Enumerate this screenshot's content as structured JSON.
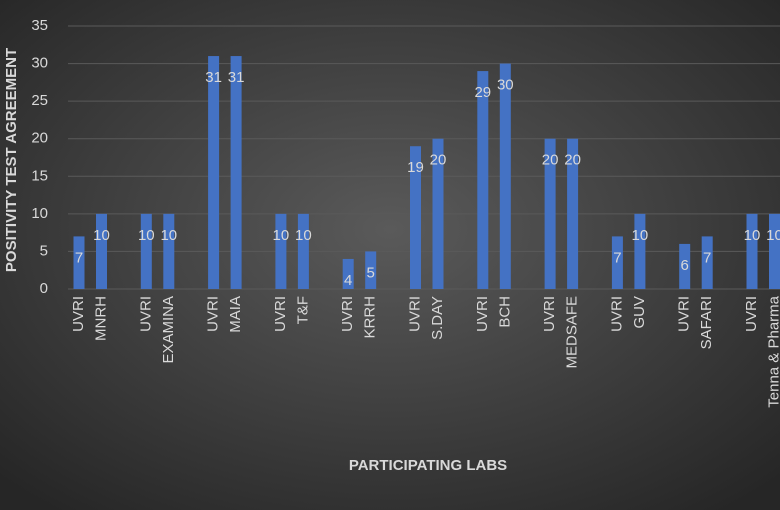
{
  "chart_data": {
    "type": "bar",
    "x_label": "PARTICIPATING LABS",
    "y_label": "POSITIVITY TEST AGREEMENT",
    "categories": [
      "UVRI",
      "MNRH",
      "UVRI",
      "EXAMINA",
      "UVRI",
      "MAIA",
      "UVRI",
      "T&F",
      "UVRI",
      "KRRH",
      "UVRI",
      "S.DAY",
      "UVRI",
      "BCH",
      "UVRI",
      "MEDSAFE",
      "UVRI",
      "GUV",
      "UVRI",
      "SAFARI",
      "UVRI",
      "Tenna & Pharma"
    ],
    "values": [
      7,
      10,
      10,
      10,
      31,
      31,
      10,
      10,
      4,
      5,
      19,
      20,
      29,
      30,
      20,
      20,
      7,
      10,
      6,
      7,
      10,
      10
    ],
    "color": "#4472c4",
    "ylim": [
      0,
      35
    ],
    "yticks": [
      0,
      5,
      10,
      15,
      20,
      25,
      30,
      35
    ],
    "grid": true
  }
}
